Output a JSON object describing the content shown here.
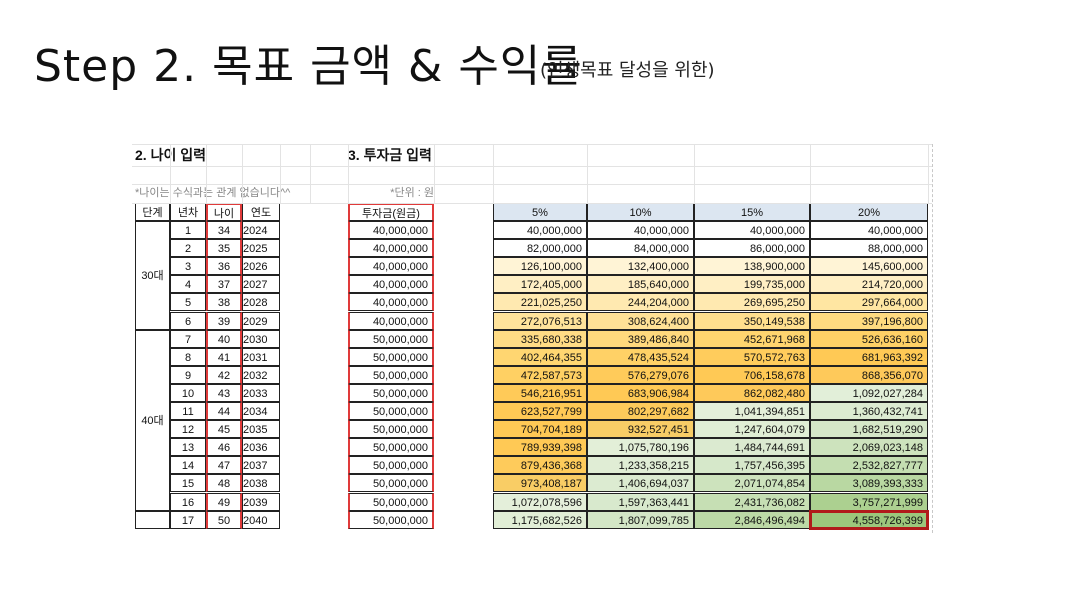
{
  "slide": {
    "title": "Step 2. 목표 금액 & 수익률",
    "subtitle": "(인생목표 달성을 위한)"
  },
  "sheet": {
    "age_section_title": "2. 나이 입력",
    "invest_section_title": "3. 투자금 입력",
    "age_note": "*나이는 수식과는 관계 없습니다^^",
    "unit_note": "*단위 : 원",
    "headers": {
      "stage": "단계",
      "year_no": "년차",
      "age": "나이",
      "year": "연도",
      "principal": "투자금(원금)"
    },
    "rate_headers": [
      "5%",
      "10%",
      "15%",
      "20%"
    ],
    "stage_groups": [
      {
        "label": "30대",
        "start": 0,
        "count": 6
      },
      {
        "label": "40대",
        "start": 6,
        "count": 10
      },
      {
        "label": "",
        "start": 16,
        "count": 1
      }
    ],
    "rows": [
      {
        "n": "1",
        "age": "34",
        "year": "2024",
        "principal": "40,000,000",
        "v": [
          "40,000,000",
          "40,000,000",
          "40,000,000",
          "40,000,000"
        ],
        "c": [
          "#ffffff",
          "#ffffff",
          "#ffffff",
          "#ffffff"
        ]
      },
      {
        "n": "2",
        "age": "35",
        "year": "2025",
        "principal": "40,000,000",
        "v": [
          "82,000,000",
          "84,000,000",
          "86,000,000",
          "88,000,000"
        ],
        "c": [
          "#ffffff",
          "#ffffff",
          "#ffffff",
          "#ffffff"
        ]
      },
      {
        "n": "3",
        "age": "36",
        "year": "2026",
        "principal": "40,000,000",
        "v": [
          "126,100,000",
          "132,400,000",
          "138,900,000",
          "145,600,000"
        ],
        "c": [
          "#fff4d6",
          "#fff4d6",
          "#fff4d6",
          "#fff4d6"
        ]
      },
      {
        "n": "4",
        "age": "37",
        "year": "2027",
        "principal": "40,000,000",
        "v": [
          "172,405,000",
          "185,640,000",
          "199,735,000",
          "214,720,000"
        ],
        "c": [
          "#ffefc4",
          "#ffefc4",
          "#ffefc4",
          "#ffefc4"
        ]
      },
      {
        "n": "5",
        "age": "38",
        "year": "2028",
        "principal": "40,000,000",
        "v": [
          "221,025,250",
          "244,204,000",
          "269,695,250",
          "297,664,000"
        ],
        "c": [
          "#ffe9b0",
          "#ffe9b0",
          "#ffe9b0",
          "#ffe6a2"
        ]
      },
      {
        "n": "6",
        "age": "39",
        "year": "2029",
        "principal": "40,000,000",
        "v": [
          "272,076,513",
          "308,624,400",
          "350,149,538",
          "397,196,800"
        ],
        "c": [
          "#ffe39b",
          "#ffe196",
          "#ffdf8e",
          "#ffdb80"
        ]
      },
      {
        "n": "7",
        "age": "40",
        "year": "2030",
        "principal": "50,000,000",
        "v": [
          "335,680,338",
          "389,486,840",
          "452,671,968",
          "526,636,160"
        ],
        "c": [
          "#ffdc85",
          "#ffd97d",
          "#ffd56f",
          "#ffd166"
        ]
      },
      {
        "n": "8",
        "age": "41",
        "year": "2031",
        "principal": "50,000,000",
        "v": [
          "402,464,355",
          "478,435,524",
          "570,572,763",
          "681,963,392"
        ],
        "c": [
          "#ffd671",
          "#ffd166",
          "#ffcc5c",
          "#ffc955"
        ]
      },
      {
        "n": "9",
        "age": "42",
        "year": "2032",
        "principal": "50,000,000",
        "v": [
          "472,587,573",
          "576,279,076",
          "706,158,678",
          "868,356,070"
        ],
        "c": [
          "#ffd063",
          "#ffcb5a",
          "#ffc955",
          "#fec95a"
        ]
      },
      {
        "n": "10",
        "age": "43",
        "year": "2033",
        "principal": "50,000,000",
        "v": [
          "546,216,951",
          "683,906,984",
          "862,082,480",
          "1,092,027,284"
        ],
        "c": [
          "#ffca58",
          "#ffc955",
          "#fec95a",
          "#e2efd9"
        ]
      },
      {
        "n": "11",
        "age": "44",
        "year": "2034",
        "principal": "50,000,000",
        "v": [
          "623,527,799",
          "802,297,682",
          "1,041,394,851",
          "1,360,432,741"
        ],
        "c": [
          "#ffc955",
          "#fdca5b",
          "#e4efd9",
          "#dcebd1"
        ]
      },
      {
        "n": "12",
        "age": "45",
        "year": "2035",
        "principal": "50,000,000",
        "v": [
          "704,704,189",
          "932,527,451",
          "1,247,604,079",
          "1,682,519,290"
        ],
        "c": [
          "#ffc955",
          "#f8cd66",
          "#e0eed5",
          "#d5e7c8"
        ]
      },
      {
        "n": "13",
        "age": "46",
        "year": "2036",
        "principal": "50,000,000",
        "v": [
          "789,939,398",
          "1,075,780,196",
          "1,484,744,691",
          "2,069,023,148"
        ],
        "c": [
          "#ffc955",
          "#e3efd8",
          "#dbead0",
          "#cde3bd"
        ]
      },
      {
        "n": "14",
        "age": "47",
        "year": "2037",
        "principal": "50,000,000",
        "v": [
          "879,436,368",
          "1,233,358,215",
          "1,757,456,395",
          "2,532,827,777"
        ],
        "c": [
          "#fecb5b",
          "#e0edd5",
          "#d6e8ca",
          "#c4deb1"
        ]
      },
      {
        "n": "15",
        "age": "48",
        "year": "2038",
        "principal": "50,000,000",
        "v": [
          "973,408,187",
          "1,406,694,037",
          "2,071,074,854",
          "3,089,393,333"
        ],
        "c": [
          "#f9cd65",
          "#dcebd1",
          "#cde3bd",
          "#b9d8a2"
        ]
      },
      {
        "n": "16",
        "age": "49",
        "year": "2039",
        "principal": "50,000,000",
        "v": [
          "1,072,078,596",
          "1,597,363,441",
          "2,431,736,082",
          "3,757,271,999"
        ],
        "c": [
          "#e4efda",
          "#d8e9cd",
          "#c6dfb4",
          "#acd090"
        ]
      },
      {
        "n": "17",
        "age": "50",
        "year": "2040",
        "principal": "50,000,000",
        "v": [
          "1,175,682,526",
          "1,807,099,785",
          "2,846,496,494",
          "4,558,726,399"
        ],
        "c": [
          "#e1eed6",
          "#d3e6c6",
          "#bcd9a6",
          "#9cc77c"
        ]
      }
    ]
  }
}
